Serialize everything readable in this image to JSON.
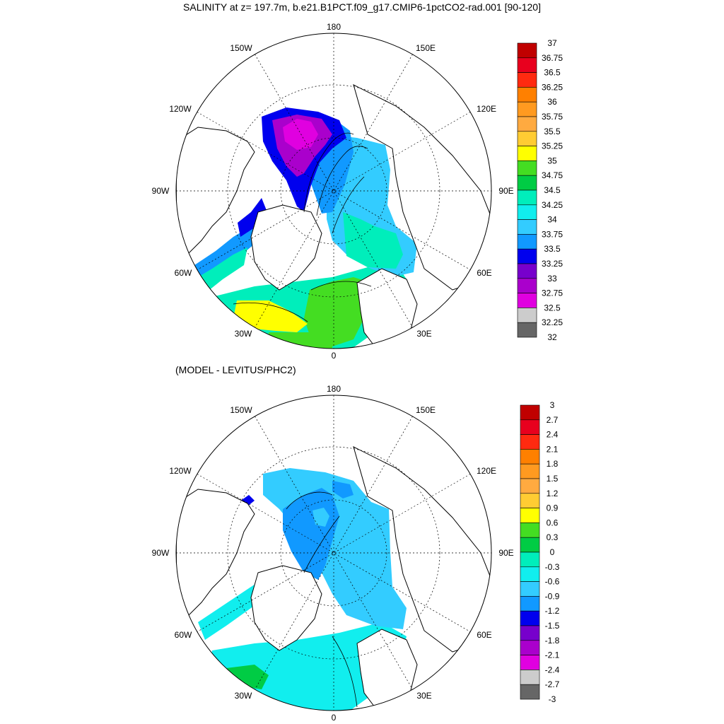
{
  "title": "SALINITY at z= 197.7m, b.e21.B1PCT.f09_g17.CMIP6-1pctCO2-rad.001 [90-120]",
  "subtitle": "(MODEL - LEVITUS/PHC2)",
  "map_labels": {
    "lon_180": "180",
    "lon_0": "0",
    "lon_150w": "150W",
    "lon_150e": "150E",
    "lon_120w": "120W",
    "lon_120e": "120E",
    "lon_90w": "90W",
    "lon_90e": "90E",
    "lon_60w": "60W",
    "lon_60e": "60E",
    "lon_30w": "30W",
    "lon_30e": "30E"
  },
  "colorbar_top": {
    "labels": [
      "37",
      "36.75",
      "36.5",
      "36.25",
      "36",
      "35.75",
      "35.5",
      "35.25",
      "35",
      "34.75",
      "34.5",
      "34.25",
      "34",
      "33.75",
      "33.5",
      "33.25",
      "33",
      "32.75",
      "32.5",
      "32.25",
      "32"
    ],
    "colors": [
      "#c00000",
      "#e8001e",
      "#ff2a10",
      "#ff8000",
      "#ff9a20",
      "#ffaa40",
      "#ffcc33",
      "#ffff00",
      "#44dd22",
      "#00cc44",
      "#00eebb",
      "#11eeee",
      "#33ccff",
      "#1199ff",
      "#0000ee",
      "#7700cc",
      "#aa00cc",
      "#e000e0",
      "#cccccc",
      "#666666"
    ]
  },
  "colorbar_bottom": {
    "labels": [
      "3",
      "2.7",
      "2.4",
      "2.1",
      "1.8",
      "1.5",
      "1.2",
      "0.9",
      "0.6",
      "0.3",
      "0",
      "-0.3",
      "-0.6",
      "-0.9",
      "-1.2",
      "-1.5",
      "-1.8",
      "-2.1",
      "-2.4",
      "-2.7",
      "-3"
    ],
    "colors": [
      "#c00000",
      "#e8001e",
      "#ff2a10",
      "#ff8000",
      "#ff9a20",
      "#ffaa40",
      "#ffcc33",
      "#ffff00",
      "#44dd22",
      "#00cc44",
      "#00eebb",
      "#11eeee",
      "#33ccff",
      "#1199ff",
      "#0000ee",
      "#7700cc",
      "#aa00cc",
      "#e000e0",
      "#cccccc",
      "#666666"
    ]
  }
}
